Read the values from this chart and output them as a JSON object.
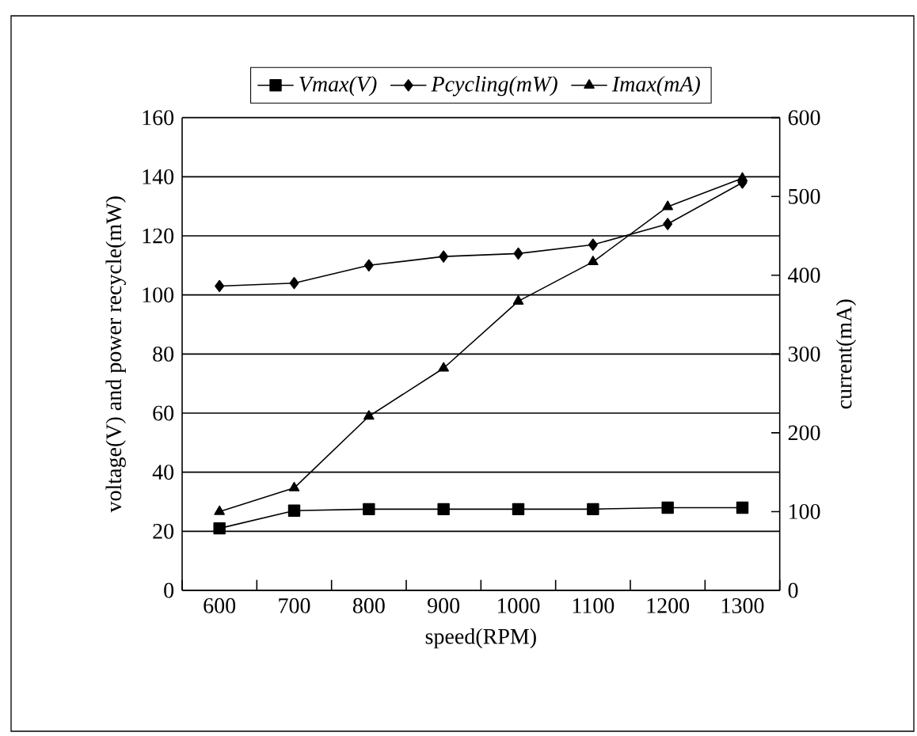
{
  "chart_data": {
    "type": "line",
    "xlabel": "speed(RPM)",
    "ylabel": "voltage(V) and power recycle(mW)",
    "y2label": "current(mA)",
    "categories": [
      "600",
      "700",
      "800",
      "900",
      "1000",
      "1100",
      "1200",
      "1300"
    ],
    "series": [
      {
        "name": "Vmax(V)",
        "color": "#000000",
        "marker": "square",
        "values": [
          21,
          27,
          27.5,
          27.5,
          27.5,
          27.5,
          28,
          28
        ]
      },
      {
        "name": "Pcycling(mW)",
        "color": "#000000",
        "marker": "diamond",
        "values": [
          103,
          104,
          110,
          113,
          114,
          117,
          124,
          138
        ]
      },
      {
        "name": "Imax(mA)",
        "color": "#000000",
        "marker": "triangle",
        "axis": "y2",
        "values": [
          100,
          130,
          221,
          282,
          367,
          417,
          487,
          523
        ]
      }
    ],
    "ylim": [
      0,
      160
    ],
    "yticks": [
      0,
      20,
      40,
      60,
      80,
      100,
      120,
      140,
      160
    ],
    "y2lim": [
      0,
      600
    ],
    "y2ticks": [
      0,
      100,
      200,
      300,
      400,
      500,
      600
    ],
    "grid": "y",
    "legend": "top",
    "line_style": "solid"
  }
}
